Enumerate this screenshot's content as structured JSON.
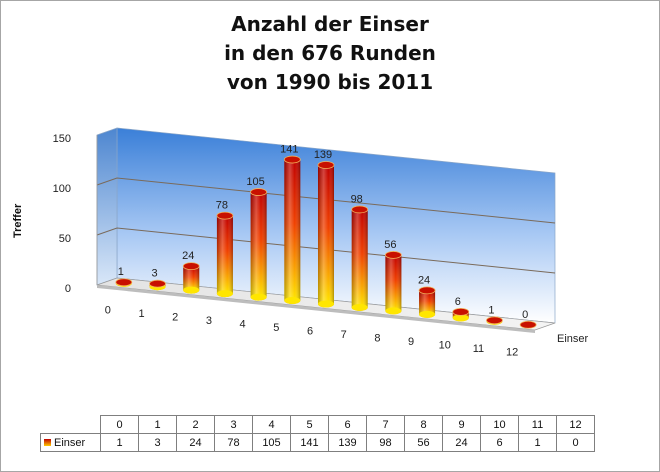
{
  "chart_data": {
    "type": "bar",
    "title": [
      "Anzahl der Einser",
      "in den 676 Runden",
      "von 1990 bis 2011"
    ],
    "xlabel": "Einser",
    "ylabel": "Treffer",
    "categories": [
      "0",
      "1",
      "2",
      "3",
      "4",
      "5",
      "6",
      "7",
      "8",
      "9",
      "10",
      "11",
      "12"
    ],
    "series": [
      {
        "name": "Einser",
        "values": [
          1,
          3,
          24,
          78,
          105,
          141,
          139,
          98,
          56,
          24,
          6,
          1,
          0
        ]
      }
    ],
    "ylim": [
      0,
      150
    ],
    "yticks": [
      "0",
      "50",
      "100",
      "150"
    ],
    "data_labels": true,
    "grid": true,
    "style": "3d-cylinder",
    "legend": "data-table-below",
    "colors": {
      "bar_top": "#c00000",
      "bar_bottom": "#ffe600",
      "wall_top": "#3a7fd8",
      "wall_bottom": "#ffffff"
    }
  }
}
